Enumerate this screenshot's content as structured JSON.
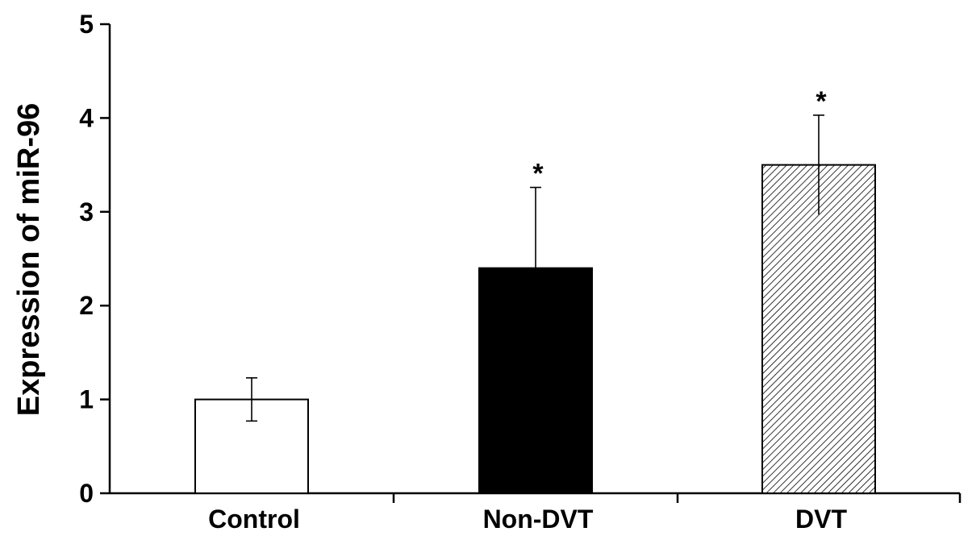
{
  "chart_data": {
    "type": "bar",
    "categories": [
      "Control",
      "Non-DVT",
      "DVT"
    ],
    "values": [
      1.0,
      2.4,
      3.5
    ],
    "errors": [
      0.23,
      0.86,
      0.53
    ],
    "significance": [
      "",
      "*",
      "*"
    ],
    "fills": [
      "white",
      "black",
      "hatched"
    ],
    "ylabel": "Expression of miR-96",
    "xlabel": "",
    "ylim": [
      0,
      5
    ],
    "yticks": [
      0,
      1,
      2,
      3,
      4,
      5
    ],
    "grid": false,
    "legend": "none"
  }
}
